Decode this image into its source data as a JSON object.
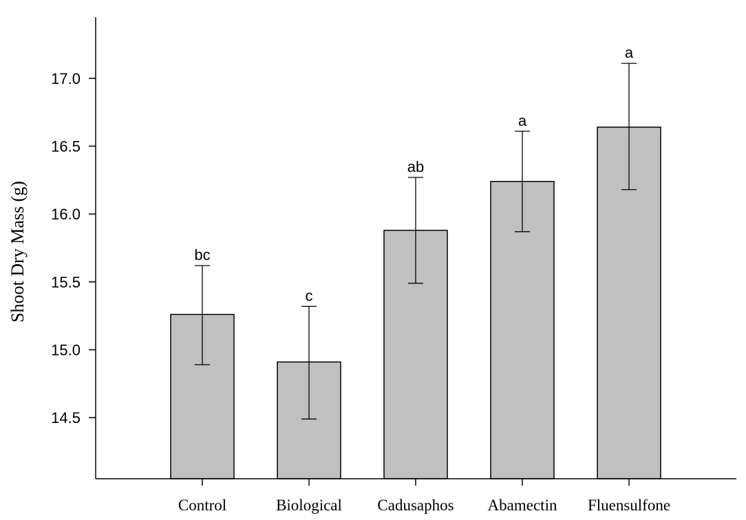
{
  "chart_data": {
    "type": "bar",
    "title": "",
    "xlabel": "",
    "ylabel": "Shoot Dry Mass (g)",
    "ylim": [
      14.05,
      17.45
    ],
    "yticks": [
      14.5,
      15.0,
      15.5,
      16.0,
      16.5,
      17.0
    ],
    "ytick_labels": [
      "14.5",
      "15.0",
      "15.5",
      "16.0",
      "16.5",
      "17.0"
    ],
    "categories": [
      "Control",
      "Biological",
      "Cadusaphos",
      "Abamectin",
      "Fluensulfone"
    ],
    "values": [
      15.26,
      14.91,
      15.88,
      16.24,
      16.64
    ],
    "error_low": [
      14.89,
      14.49,
      15.49,
      15.87,
      16.18
    ],
    "error_high": [
      15.62,
      15.32,
      16.27,
      16.61,
      17.11
    ],
    "significance": [
      "bc",
      "c",
      "ab",
      "a",
      "a"
    ],
    "grid": false,
    "colors": {
      "bar_fill": "#c0c0c0",
      "bar_stroke": "#000000",
      "axis": "#000000"
    }
  }
}
